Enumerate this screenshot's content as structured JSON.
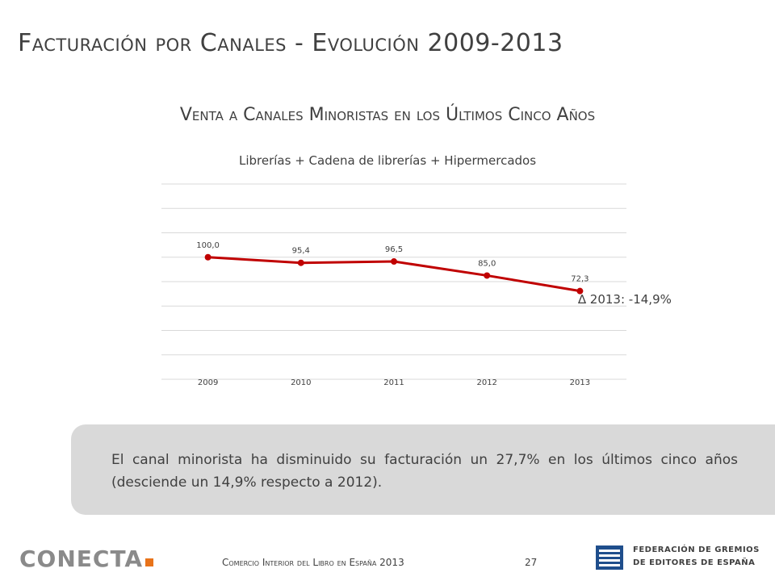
{
  "header": {
    "title": "Facturación por Canales - Evolución 2009-2013",
    "subtitle": "Venta a Canales Minoristas en los Últimos Cinco Años"
  },
  "chart_data": {
    "type": "line",
    "title": "Librerías + Cadena de librerías + Hipermercados",
    "categories": [
      "2009",
      "2010",
      "2011",
      "2012",
      "2013"
    ],
    "series": [
      {
        "values": [
          100.0,
          95.4,
          96.5,
          85.0,
          72.3
        ],
        "labels": [
          "100,0",
          "95,4",
          "96,5",
          "85,0",
          "72,3"
        ]
      }
    ],
    "line_color": "#c00000",
    "grid": true,
    "ylim": [
      0,
      160
    ]
  },
  "annotation": {
    "delta": "∆ 2013: -14,9%"
  },
  "note": {
    "text": "El canal minorista ha disminuido su facturación un 27,7% en los últimos cinco años (desciende un 14,9% respecto a 2012)."
  },
  "footer": {
    "logo": "CONECTA",
    "text": "Comercio Interior del Libro en España 2013",
    "page": "27",
    "org_line1": "FEDERACIÓN DE GREMIOS",
    "org_line2": "DE EDITORES DE ESPAÑA"
  }
}
